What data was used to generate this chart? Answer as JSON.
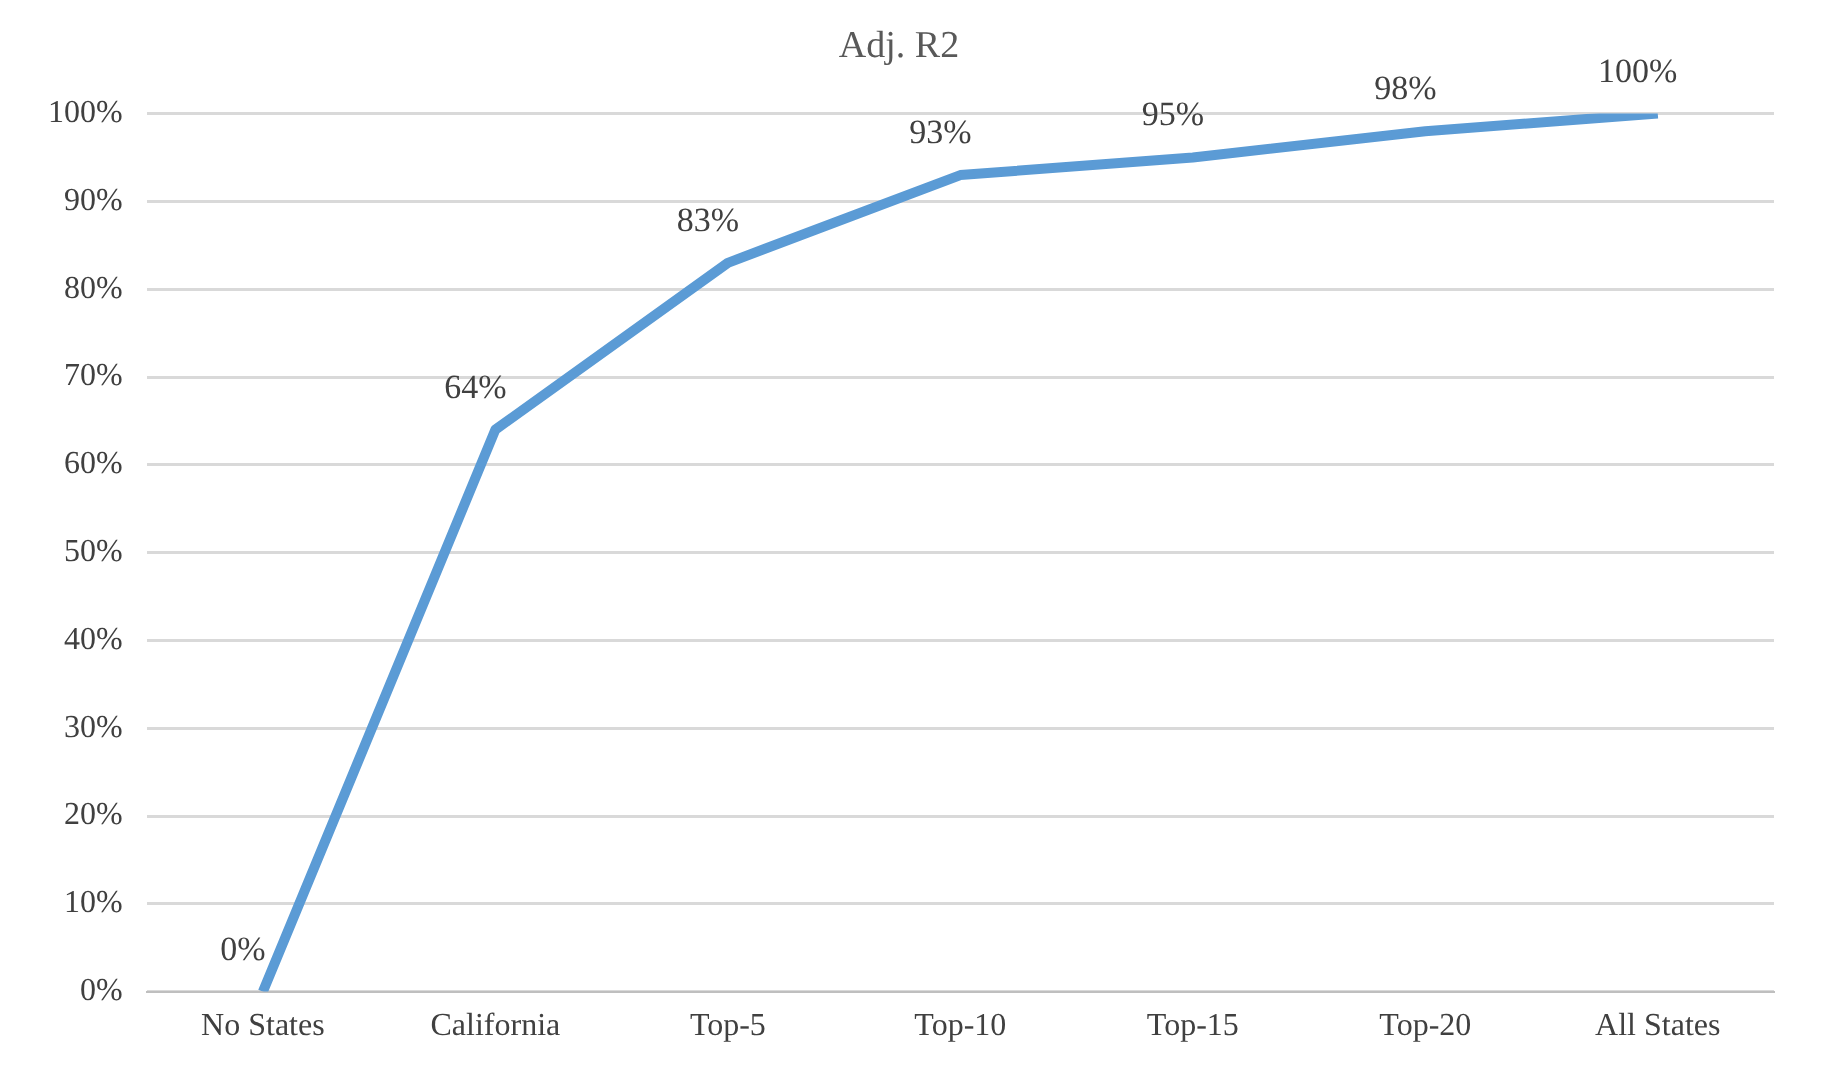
{
  "chart_data": {
    "type": "line",
    "title": "Adj. R2",
    "categories": [
      "No States",
      "California",
      "Top-5",
      "Top-10",
      "Top-15",
      "Top-20",
      "All States"
    ],
    "series": [
      {
        "color": "#5b9bd5",
        "values": [
          0,
          64,
          83,
          93,
          95,
          98,
          100
        ]
      }
    ],
    "value_labels": [
      "0%",
      "64%",
      "83%",
      "93%",
      "95%",
      "98%",
      "100%"
    ],
    "ylim": [
      0,
      100
    ],
    "yticks": [
      {
        "value": 0,
        "label": "0%"
      },
      {
        "value": 10,
        "label": "10%"
      },
      {
        "value": 20,
        "label": "20%"
      },
      {
        "value": 30,
        "label": "30%"
      },
      {
        "value": 40,
        "label": "40%"
      },
      {
        "value": 50,
        "label": "50%"
      },
      {
        "value": 60,
        "label": "60%"
      },
      {
        "value": 70,
        "label": "70%"
      },
      {
        "value": 80,
        "label": "80%"
      },
      {
        "value": 90,
        "label": "90%"
      },
      {
        "value": 100,
        "label": "100%"
      }
    ],
    "grid": "y",
    "legend": false,
    "marker": "none",
    "line_style": "solid"
  }
}
